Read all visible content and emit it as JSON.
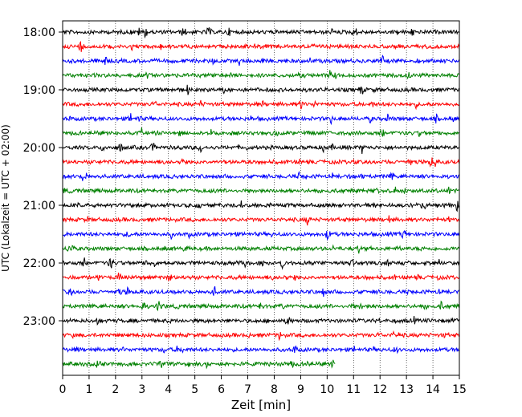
{
  "chart_data": {
    "type": "line",
    "title": "",
    "xlabel": "Zeit  [min]",
    "ylabel": "UTC (Lokalzeit = UTC + 02:00)",
    "xlim": [
      0,
      15
    ],
    "x_ticks": [
      "0",
      "1",
      "2",
      "3",
      "4",
      "5",
      "6",
      "7",
      "8",
      "9",
      "10",
      "11",
      "12",
      "13",
      "14",
      "15"
    ],
    "y_tick_labels": [
      "18:00",
      "19:00",
      "20:00",
      "21:00",
      "22:00",
      "23:00"
    ],
    "trace_interval_min": 15,
    "start_time": "18:00",
    "grid": "x-dotted",
    "last_trace_end_min": 10.3,
    "colors": [
      "#000000",
      "#ff0000",
      "#0000ff",
      "#008000"
    ],
    "traces": [
      {
        "time": "18:00",
        "color": "#000000",
        "end": 15
      },
      {
        "time": "18:15",
        "color": "#ff0000",
        "end": 15
      },
      {
        "time": "18:30",
        "color": "#0000ff",
        "end": 15
      },
      {
        "time": "18:45",
        "color": "#008000",
        "end": 15
      },
      {
        "time": "19:00",
        "color": "#000000",
        "end": 15
      },
      {
        "time": "19:15",
        "color": "#ff0000",
        "end": 15
      },
      {
        "time": "19:30",
        "color": "#0000ff",
        "end": 15
      },
      {
        "time": "19:45",
        "color": "#008000",
        "end": 15
      },
      {
        "time": "20:00",
        "color": "#000000",
        "end": 15
      },
      {
        "time": "20:15",
        "color": "#ff0000",
        "end": 15
      },
      {
        "time": "20:30",
        "color": "#0000ff",
        "end": 15
      },
      {
        "time": "20:45",
        "color": "#008000",
        "end": 15
      },
      {
        "time": "21:00",
        "color": "#000000",
        "end": 15
      },
      {
        "time": "21:15",
        "color": "#ff0000",
        "end": 15
      },
      {
        "time": "21:30",
        "color": "#0000ff",
        "end": 15
      },
      {
        "time": "21:45",
        "color": "#008000",
        "end": 15
      },
      {
        "time": "22:00",
        "color": "#000000",
        "end": 15
      },
      {
        "time": "22:15",
        "color": "#ff0000",
        "end": 15
      },
      {
        "time": "22:30",
        "color": "#0000ff",
        "end": 15
      },
      {
        "time": "22:45",
        "color": "#008000",
        "end": 15
      },
      {
        "time": "23:00",
        "color": "#000000",
        "end": 15
      },
      {
        "time": "23:15",
        "color": "#ff0000",
        "end": 15
      },
      {
        "time": "23:30",
        "color": "#0000ff",
        "end": 15
      },
      {
        "time": "23:45",
        "color": "#008000",
        "end": 10.3
      }
    ]
  }
}
